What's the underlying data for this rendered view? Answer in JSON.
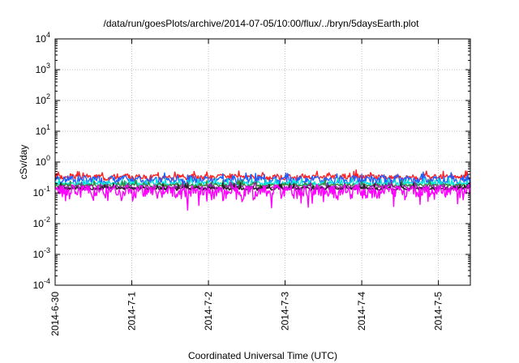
{
  "chart_data": {
    "type": "line",
    "title": "/data/run/goesPlots/archive/2014-07-05/10:00/flux/../bryn/5daysEarth.plot",
    "xlabel": "Coordinated Universal Time (UTC)",
    "ylabel": "cSv/day",
    "yscale": "log",
    "ylim": [
      0.0001,
      10000
    ],
    "xlim": [
      "2014-06-30 00:00",
      "2014-07-05 10:00"
    ],
    "y_ticks": [
      {
        "value": 0.0001,
        "base": "10",
        "exp": "-4"
      },
      {
        "value": 0.001,
        "base": "10",
        "exp": "-3"
      },
      {
        "value": 0.01,
        "base": "10",
        "exp": "-2"
      },
      {
        "value": 0.1,
        "base": "10",
        "exp": "-1"
      },
      {
        "value": 1,
        "base": "10",
        "exp": "0"
      },
      {
        "value": 10,
        "base": "10",
        "exp": "1"
      },
      {
        "value": 100,
        "base": "10",
        "exp": "2"
      },
      {
        "value": 1000,
        "base": "10",
        "exp": "3"
      },
      {
        "value": 10000,
        "base": "10",
        "exp": "4"
      }
    ],
    "x_ticks": [
      {
        "value": "2014-06-30 00:00",
        "label": "2014-6-30"
      },
      {
        "value": "2014-07-01 00:00",
        "label": "2014-7-1"
      },
      {
        "value": "2014-07-02 00:00",
        "label": "2014-7-2"
      },
      {
        "value": "2014-07-03 00:00",
        "label": "2014-7-3"
      },
      {
        "value": "2014-07-04 00:00",
        "label": "2014-7-4"
      },
      {
        "value": "2014-07-05 00:00",
        "label": "2014-7-5"
      }
    ],
    "grid": true,
    "series": [
      {
        "color": "#ff2020",
        "base": 0.33,
        "amp": 0.06,
        "seed": 3
      },
      {
        "color": "#1f5fff",
        "base": 0.27,
        "amp": 0.07,
        "seed": 7
      },
      {
        "color": "#00e5d8",
        "base": 0.2,
        "amp": 0.03,
        "seed": 11
      },
      {
        "color": "#3a8a3a",
        "base": 0.175,
        "amp": 0.02,
        "seed": 13
      },
      {
        "color": "#9b1fa8",
        "base": 0.15,
        "amp": 0.02,
        "seed": 17
      },
      {
        "color": "#222222",
        "base": 0.14,
        "amp": 0.015,
        "seed": 19
      },
      {
        "color": "#ff00ff",
        "base": 0.12,
        "amp": 0.05,
        "seed": 23
      }
    ]
  }
}
